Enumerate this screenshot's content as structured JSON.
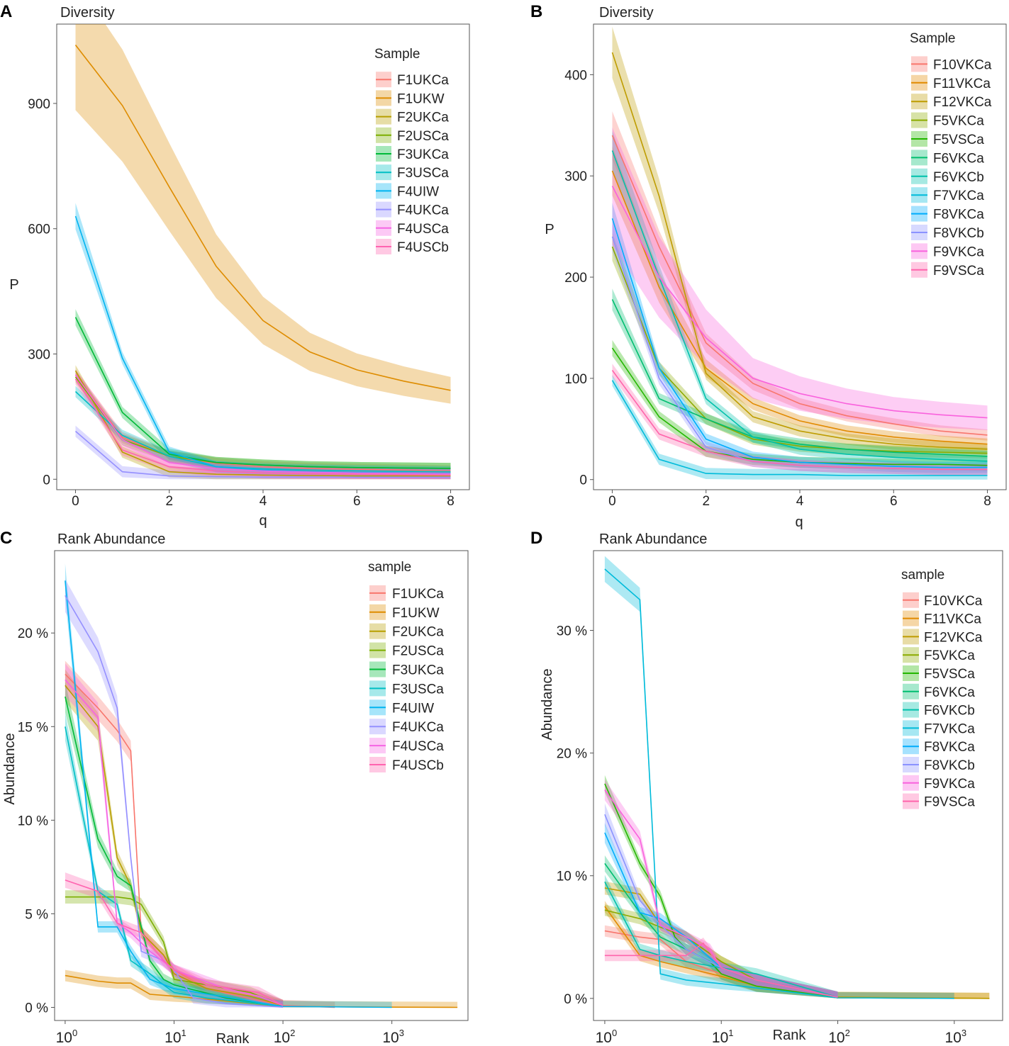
{
  "colors": {
    "s10": [
      "#F8766D",
      "#DE8C00",
      "#B79F00",
      "#7CAE00",
      "#00BA38",
      "#00C08B",
      "#00BFC4",
      "#00B4F0",
      "#9590FF",
      "#F564E3",
      "#FF64B0"
    ],
    "s12": [
      "#F8766D",
      "#E18A00",
      "#BE9C00",
      "#8CAB00",
      "#24B700",
      "#00BE70",
      "#00C1AB",
      "#00BBDA",
      "#00ACFC",
      "#8B93FF",
      "#D575FE",
      "#F962DD",
      "#FF65AC"
    ]
  },
  "chart_data": [
    {
      "panel": "A",
      "type": "line",
      "title": "Diversity",
      "xlabel": "q",
      "ylabel": "P",
      "xlim": [
        -0.4,
        8.4
      ],
      "ylim": [
        -25,
        1090
      ],
      "xticks": [
        0,
        2,
        4,
        6,
        8
      ],
      "yticks": [
        0,
        300,
        600,
        900
      ],
      "x": [
        0,
        1,
        2,
        3,
        4,
        5,
        6,
        7,
        8
      ],
      "legend_title": "Sample",
      "series": [
        {
          "name": "F1UKCa",
          "c": 0,
          "band": 0.05,
          "values": [
            250,
            100,
            55,
            38,
            30,
            26,
            24,
            22,
            20
          ]
        },
        {
          "name": "F1UKW",
          "c": 1,
          "band": 0.15,
          "values": [
            1040,
            895,
            700,
            510,
            380,
            305,
            262,
            235,
            213
          ]
        },
        {
          "name": "F2UKCa",
          "c": 2,
          "band": 0.05,
          "values": [
            260,
            65,
            18,
            12,
            10,
            9,
            8,
            8,
            8
          ]
        },
        {
          "name": "F2USCa",
          "c": 3,
          "band": 0.05,
          "values": [
            245,
            95,
            55,
            40,
            34,
            30,
            28,
            27,
            26
          ]
        },
        {
          "name": "F3UKCa",
          "c": 4,
          "band": 0.05,
          "values": [
            388,
            160,
            60,
            40,
            34,
            30,
            28,
            27,
            26
          ]
        },
        {
          "name": "F3USCa",
          "c": 6,
          "band": 0.05,
          "values": [
            210,
            105,
            55,
            30,
            25,
            22,
            20,
            19,
            18
          ]
        },
        {
          "name": "F4UIW",
          "c": 7,
          "band": 0.05,
          "values": [
            630,
            290,
            65,
            30,
            22,
            18,
            16,
            15,
            14
          ]
        },
        {
          "name": "F4UKCa",
          "c": 8,
          "band": 0.05,
          "values": [
            115,
            18,
            8,
            6,
            5,
            5,
            5,
            5,
            5
          ]
        },
        {
          "name": "F4USCa",
          "c": 9,
          "band": 0.05,
          "values": [
            250,
            95,
            40,
            25,
            20,
            17,
            15,
            14,
            13
          ]
        },
        {
          "name": "F4USCb",
          "c": 10,
          "band": 0.05,
          "values": [
            240,
            70,
            30,
            20,
            15,
            13,
            12,
            11,
            10
          ]
        }
      ]
    },
    {
      "panel": "B",
      "type": "line",
      "title": "Diversity",
      "xlabel": "q",
      "ylabel": "P",
      "xlim": [
        -0.4,
        8.4
      ],
      "ylim": [
        -10,
        450
      ],
      "xticks": [
        0,
        2,
        4,
        6,
        8
      ],
      "yticks": [
        0,
        100,
        200,
        300,
        400
      ],
      "x": [
        0,
        1,
        2,
        3,
        4,
        5,
        6,
        7,
        8
      ],
      "legend_title": "Sample",
      "series": [
        {
          "name": "F10VKCa",
          "c": 0,
          "band": 0.07,
          "values": [
            340,
            230,
            135,
            95,
            75,
            63,
            55,
            48,
            44
          ]
        },
        {
          "name": "F11VKCa",
          "c": 1,
          "band": 0.08,
          "values": [
            305,
            190,
            110,
            75,
            58,
            48,
            42,
            38,
            35
          ]
        },
        {
          "name": "F12VKCa",
          "c": 2,
          "band": 0.06,
          "values": [
            422,
            280,
            105,
            62,
            48,
            40,
            35,
            32,
            30
          ]
        },
        {
          "name": "F5VKCa",
          "c": 3,
          "band": 0.06,
          "values": [
            230,
            110,
            60,
            40,
            33,
            30,
            28,
            27,
            26
          ]
        },
        {
          "name": "F5VSCa",
          "c": 4,
          "band": 0.06,
          "values": [
            130,
            62,
            28,
            20,
            17,
            16,
            15,
            15,
            14
          ]
        },
        {
          "name": "F6VKCa",
          "c": 5,
          "band": 0.06,
          "values": [
            178,
            80,
            60,
            42,
            35,
            30,
            27,
            25,
            23
          ]
        },
        {
          "name": "F6VKCb",
          "c": 6,
          "band": 0.06,
          "values": [
            325,
            200,
            80,
            42,
            30,
            25,
            22,
            20,
            18
          ]
        },
        {
          "name": "F7VKCa",
          "c": 7,
          "band": 0.05,
          "values": [
            98,
            20,
            6,
            5,
            5,
            4,
            4,
            4,
            4
          ]
        },
        {
          "name": "F8VKCa",
          "c": 8,
          "band": 0.06,
          "values": [
            258,
            110,
            40,
            22,
            17,
            15,
            13,
            12,
            12
          ]
        },
        {
          "name": "F8VKCb",
          "c": 9,
          "band": 0.06,
          "values": [
            240,
            100,
            32,
            18,
            14,
            12,
            11,
            10,
            10
          ]
        },
        {
          "name": "F9VKCa",
          "c": 11,
          "band": 0.2,
          "values": [
            290,
            200,
            140,
            100,
            85,
            75,
            68,
            64,
            61
          ]
        },
        {
          "name": "F9VSCa",
          "c": 12,
          "band": 0.06,
          "values": [
            108,
            45,
            28,
            18,
            14,
            12,
            11,
            10,
            10
          ]
        }
      ]
    },
    {
      "panel": "C",
      "type": "line",
      "title": "Rank Abundance",
      "xlabel": "Rank",
      "ylabel": "Abundance",
      "xscale": "log",
      "xlim": [
        0.8,
        5000
      ],
      "ylim": [
        -0.7,
        24.4
      ],
      "xticks": [
        1,
        10,
        100,
        1000
      ],
      "xtick_labels": [
        "0",
        "1",
        "2",
        "3"
      ],
      "yticks": [
        0,
        5,
        10,
        15,
        20
      ],
      "ytick_labels": [
        "0 %",
        "5 %",
        "10 %",
        "15 %",
        "20 %"
      ],
      "legend_title": "sample",
      "series": [
        {
          "name": "F1UKCa",
          "c": 0,
          "band": 0.04,
          "x": [
            1,
            2,
            3,
            4,
            5,
            8,
            10,
            20,
            40,
            100,
            300
          ],
          "values": [
            17.8,
            16,
            14.8,
            13.7,
            4,
            2.8,
            2,
            1,
            0.6,
            0.1,
            0
          ]
        },
        {
          "name": "F1UKW",
          "c": 1,
          "band": 0.15,
          "x": [
            1,
            2,
            3,
            4,
            6,
            10,
            100,
            1000,
            4000
          ],
          "values": [
            1.7,
            1.4,
            1.3,
            1.3,
            0.7,
            0.6,
            0.05,
            0.01,
            0
          ]
        },
        {
          "name": "F2UKCa",
          "c": 2,
          "band": 0.05,
          "x": [
            1,
            2,
            3,
            4,
            5,
            8,
            10,
            20,
            50,
            100
          ],
          "values": [
            17.2,
            15,
            8,
            6.5,
            4,
            2.8,
            1.8,
            1,
            0.6,
            0.1
          ]
        },
        {
          "name": "F2USCa",
          "c": 3,
          "band": 0.06,
          "x": [
            1,
            2,
            3,
            4,
            5,
            8,
            10,
            20,
            50,
            100
          ],
          "values": [
            5.9,
            5.9,
            5.9,
            5.8,
            5.5,
            3.5,
            1.5,
            1.2,
            0.8,
            0.1
          ]
        },
        {
          "name": "F3UKCa",
          "c": 4,
          "band": 0.05,
          "x": [
            1,
            2,
            3,
            4,
            6,
            8,
            10,
            30,
            100
          ],
          "values": [
            16.6,
            9,
            7,
            6.5,
            2.5,
            1.5,
            1.2,
            0.5,
            0.05
          ]
        },
        {
          "name": "F3USCa",
          "c": 6,
          "band": 0.05,
          "x": [
            1,
            2,
            3,
            4,
            6,
            8,
            10,
            20,
            100
          ],
          "values": [
            15,
            6.2,
            5.5,
            2.5,
            1.8,
            1.2,
            0.8,
            0.5,
            0.05
          ]
        },
        {
          "name": "F4UIW",
          "c": 7,
          "band": 0.04,
          "x": [
            1,
            2,
            3,
            4,
            6,
            10,
            100,
            1000
          ],
          "values": [
            22.8,
            4.3,
            4.3,
            3,
            1.5,
            1,
            0.05,
            0
          ]
        },
        {
          "name": "F4UKCa",
          "c": 8,
          "band": 0.04,
          "x": [
            1,
            2,
            3,
            4,
            5,
            8,
            10,
            15,
            30,
            100
          ],
          "values": [
            22,
            19,
            16,
            8,
            3,
            2.5,
            2,
            0.5,
            0.2,
            0.01
          ]
        },
        {
          "name": "F4USCa",
          "c": 9,
          "band": 0.05,
          "x": [
            1,
            2,
            3,
            4,
            6,
            10,
            30,
            60,
            100
          ],
          "values": [
            17.5,
            15.5,
            4.5,
            4,
            3,
            2,
            1,
            0.6,
            0.1
          ]
        },
        {
          "name": "F4USCb",
          "c": 10,
          "band": 0.06,
          "x": [
            1,
            2,
            3,
            4,
            5,
            8,
            10,
            20,
            60,
            100
          ],
          "values": [
            6.8,
            6.2,
            4.5,
            4.2,
            4,
            2.5,
            2,
            1.2,
            0.8,
            0.1
          ]
        }
      ]
    },
    {
      "panel": "D",
      "type": "line",
      "title": "Rank Abundance",
      "xlabel": "Rank",
      "ylabel": "Abundance",
      "xscale": "log",
      "xlim": [
        0.8,
        2600
      ],
      "ylim": [
        -1.8,
        36.5
      ],
      "xticks": [
        1,
        10,
        100,
        1000
      ],
      "xtick_labels": [
        "0",
        "1",
        "2",
        "3"
      ],
      "yticks": [
        0,
        10,
        20,
        30
      ],
      "ytick_labels": [
        "0 %",
        "10 %",
        "20 %",
        "30 %"
      ],
      "legend_title": "sample",
      "series": [
        {
          "name": "F10VKCa",
          "c": 0,
          "band": 0.07,
          "x": [
            1,
            2,
            3,
            5,
            10,
            20,
            100,
            1000
          ],
          "values": [
            5.5,
            5,
            4.8,
            3,
            2,
            1,
            0.05,
            0
          ]
        },
        {
          "name": "F11VKCa",
          "c": 1,
          "band": 0.06,
          "x": [
            1,
            2,
            3,
            5,
            10,
            20,
            100,
            2000
          ],
          "values": [
            7.5,
            3.5,
            3,
            2.5,
            1.8,
            1,
            0.05,
            0
          ]
        },
        {
          "name": "F12VKCa",
          "c": 2,
          "band": 0.06,
          "x": [
            1,
            2,
            3,
            5,
            10,
            20,
            100,
            2000
          ],
          "values": [
            9,
            8.5,
            6,
            5,
            3,
            1.5,
            0.1,
            0
          ]
        },
        {
          "name": "F5VKCa",
          "c": 3,
          "band": 0.06,
          "x": [
            1,
            2,
            3,
            5,
            10,
            20,
            100
          ],
          "values": [
            7.2,
            6.5,
            5.8,
            5,
            3,
            1.5,
            0.1
          ]
        },
        {
          "name": "F5VSCa",
          "c": 4,
          "band": 0.04,
          "x": [
            1,
            2,
            3,
            4,
            5,
            8,
            10,
            20,
            100
          ],
          "values": [
            17.5,
            11,
            8.3,
            5,
            4,
            3,
            2,
            1,
            0.05
          ]
        },
        {
          "name": "F6VKCa",
          "c": 5,
          "band": 0.06,
          "x": [
            1,
            2,
            3,
            5,
            10,
            20,
            100
          ],
          "values": [
            11,
            7,
            5,
            4,
            2.5,
            1.5,
            0.1
          ]
        },
        {
          "name": "F6VKCb",
          "c": 6,
          "band": 0.06,
          "x": [
            1,
            2,
            3,
            5,
            10,
            20,
            100
          ],
          "values": [
            9.5,
            4,
            3.5,
            3,
            2.5,
            2,
            0.1
          ]
        },
        {
          "name": "F7VKCa",
          "c": 7,
          "band": 0.03,
          "x": [
            1,
            2,
            3,
            5,
            10,
            100,
            1000
          ],
          "values": [
            35,
            32.5,
            2,
            1.5,
            1.2,
            0.05,
            0
          ]
        },
        {
          "name": "F8VKCa",
          "c": 8,
          "band": 0.06,
          "x": [
            1,
            2,
            3,
            5,
            10,
            20,
            100
          ],
          "values": [
            13.5,
            7,
            6.5,
            5,
            2.5,
            1.5,
            0.1
          ]
        },
        {
          "name": "F8VKCb",
          "c": 9,
          "band": 0.06,
          "x": [
            1,
            2,
            3,
            5,
            10,
            20,
            100
          ],
          "values": [
            15,
            8,
            6,
            4,
            2.5,
            1.5,
            0.1
          ]
        },
        {
          "name": "F9VKCa",
          "c": 11,
          "band": 0.05,
          "x": [
            1,
            2,
            3,
            5,
            8,
            10,
            20,
            100
          ],
          "values": [
            17,
            13,
            6,
            5,
            4,
            2.5,
            1.5,
            0.1
          ]
        },
        {
          "name": "F9VSCa",
          "c": 12,
          "band": 0.06,
          "x": [
            1,
            2,
            3,
            5,
            7,
            10,
            20,
            100
          ],
          "values": [
            3.5,
            3.5,
            3.5,
            3.5,
            4.5,
            2.5,
            1.5,
            0.1
          ]
        }
      ]
    }
  ]
}
